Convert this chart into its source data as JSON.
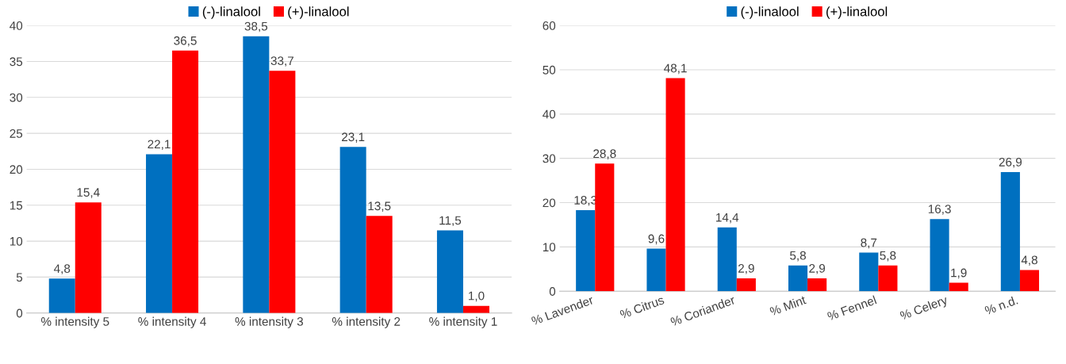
{
  "chart_data": [
    {
      "type": "bar",
      "categories": [
        "% intensity 5",
        "% intensity 4",
        "% intensity 3",
        "% intensity 2",
        "% intensity 1"
      ],
      "series": [
        {
          "name": "(-)-linalool",
          "color": "#0070c0",
          "values": [
            4.8,
            22.1,
            38.5,
            23.1,
            11.5
          ],
          "value_labels": [
            "4,8",
            "22,1",
            "38,5",
            "23,1",
            "11,5"
          ]
        },
        {
          "name": "(+)-linalool",
          "color": "#ff0000",
          "values": [
            15.4,
            36.5,
            33.7,
            13.5,
            1.0
          ],
          "value_labels": [
            "15,4",
            "36,5",
            "33,7",
            "13,5",
            "1,0"
          ]
        }
      ],
      "ylim": [
        0,
        40
      ],
      "yticks": [
        0,
        5,
        10,
        15,
        20,
        25,
        30,
        35,
        40
      ],
      "grid": "y",
      "legend": "top"
    },
    {
      "type": "bar",
      "categories": [
        "% Lavender",
        "% Citrus",
        "% Coriander",
        "% Mint",
        "% Fennel",
        "% Celery",
        "% n.d."
      ],
      "series": [
        {
          "name": "(-)-linalool",
          "color": "#0070c0",
          "values": [
            18.3,
            9.6,
            14.4,
            5.8,
            8.7,
            16.3,
            26.9
          ],
          "value_labels": [
            "18,3",
            "9,6",
            "14,4",
            "5,8",
            "8,7",
            "16,3",
            "26,9"
          ]
        },
        {
          "name": "(+)-linalool",
          "color": "#ff0000",
          "values": [
            28.8,
            48.1,
            2.9,
            2.9,
            5.8,
            1.9,
            4.8
          ],
          "value_labels": [
            "28,8",
            "48,1",
            "2,9",
            "2,9",
            "5,8",
            "1,9",
            "4,8"
          ]
        }
      ],
      "ylim": [
        0,
        60
      ],
      "yticks": [
        0,
        10,
        20,
        30,
        40,
        50,
        60
      ],
      "grid": "y",
      "legend": "top"
    }
  ]
}
